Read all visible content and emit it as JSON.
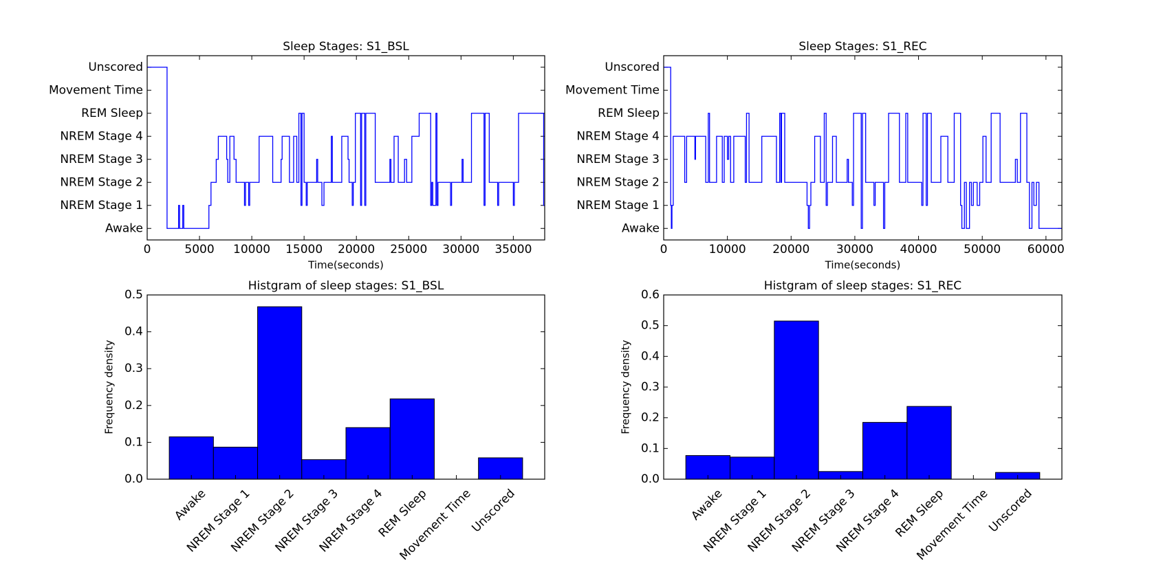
{
  "chart_data": [
    {
      "type": "line",
      "drawstyle": "steps-post",
      "title": "Sleep Stages: S1_BSL",
      "xlabel": "Time(seconds)",
      "color": "#0000ff",
      "x": [
        0,
        1900,
        3000,
        3100,
        3400,
        3500,
        5900,
        6100,
        6600,
        6800,
        7600,
        7700,
        7900,
        8300,
        8500,
        9300,
        9400,
        9700,
        9800,
        10700,
        12000,
        12800,
        12900,
        13600,
        14000,
        14300,
        14500,
        14700,
        14800,
        15000,
        15200,
        15300,
        16200,
        16300,
        16700,
        16900,
        17600,
        17700,
        18600,
        19200,
        19300,
        19600,
        19700,
        19900,
        20400,
        20500,
        20800,
        20900,
        21800,
        23200,
        23300,
        23600,
        24000,
        24600,
        24800,
        25300,
        26000,
        27100,
        27200,
        27300,
        27600,
        27700,
        27800,
        29000,
        29100,
        30100,
        30200,
        31000,
        32200,
        32300,
        32700,
        33500,
        33600,
        35000,
        35100,
        35500,
        37900,
        38000
      ],
      "values": [
        7,
        0,
        1,
        0,
        1,
        0,
        1,
        2,
        3,
        4,
        3,
        2,
        4,
        3,
        2,
        1,
        2,
        1,
        2,
        4,
        2,
        3,
        4,
        2,
        4,
        2,
        5,
        1,
        5,
        2,
        1,
        2,
        3,
        2,
        1,
        2,
        4,
        2,
        4,
        3,
        2,
        1,
        2,
        5,
        1,
        5,
        1,
        5,
        2,
        3,
        2,
        4,
        2,
        3,
        2,
        4,
        5,
        1,
        2,
        1,
        5,
        1,
        2,
        1,
        2,
        3,
        2,
        5,
        1,
        5,
        2,
        1,
        2,
        1,
        2,
        5,
        1,
        1
      ],
      "xlim": [
        0,
        38000
      ],
      "xticks": [
        0,
        5000,
        10000,
        15000,
        20000,
        25000,
        30000,
        35000
      ],
      "ylim": [
        -0.5,
        7.5
      ],
      "yticks": [
        {
          "value": 0,
          "label": "Awake"
        },
        {
          "value": 1,
          "label": "NREM Stage 1"
        },
        {
          "value": 2,
          "label": "NREM Stage 2"
        },
        {
          "value": 3,
          "label": "NREM Stage 3"
        },
        {
          "value": 4,
          "label": "NREM Stage 4"
        },
        {
          "value": 5,
          "label": "REM Sleep"
        },
        {
          "value": 6,
          "label": "Movement Time"
        },
        {
          "value": 7,
          "label": "Unscored"
        }
      ]
    },
    {
      "type": "line",
      "drawstyle": "steps-post",
      "title": "Sleep Stages: S1_REC",
      "xlabel": "Time(seconds)",
      "color": "#0000ff",
      "x": [
        0,
        1100,
        1200,
        1300,
        1500,
        3300,
        3600,
        4900,
        5000,
        6600,
        7000,
        7200,
        8300,
        9200,
        9500,
        10000,
        10200,
        10500,
        11000,
        12800,
        13000,
        13400,
        15400,
        17700,
        18200,
        18400,
        18500,
        19000,
        22500,
        22700,
        22900,
        23100,
        23700,
        24600,
        25200,
        25500,
        25700,
        26500,
        27100,
        28800,
        29000,
        29600,
        29800,
        31000,
        31200,
        31700,
        33000,
        33200,
        34500,
        34700,
        35300,
        37000,
        38000,
        38300,
        40500,
        40700,
        41200,
        41400,
        42000,
        43500,
        44600,
        45600,
        46600,
        46800,
        47200,
        47500,
        48000,
        48300,
        48600,
        49200,
        49600,
        50100,
        50600,
        51400,
        52800,
        55200,
        55500,
        56000,
        57000,
        57400,
        57800,
        58100,
        58500,
        58900,
        62500
      ],
      "values": [
        7,
        1,
        0,
        1,
        4,
        2,
        4,
        3,
        4,
        2,
        5,
        2,
        4,
        2,
        4,
        3,
        4,
        2,
        4,
        2,
        5,
        2,
        4,
        2,
        5,
        2,
        5,
        2,
        1,
        0,
        1,
        2,
        4,
        2,
        5,
        1,
        2,
        4,
        2,
        3,
        2,
        1,
        5,
        0,
        5,
        2,
        1,
        2,
        0,
        2,
        5,
        2,
        5,
        2,
        1,
        5,
        1,
        5,
        2,
        4,
        2,
        5,
        1,
        0,
        2,
        0,
        2,
        1,
        2,
        1,
        2,
        4,
        2,
        5,
        2,
        3,
        2,
        5,
        2,
        0,
        2,
        1,
        2,
        0,
        0
      ],
      "xlim": [
        0,
        62500
      ],
      "xticks": [
        0,
        10000,
        20000,
        30000,
        40000,
        50000,
        60000
      ],
      "ylim": [
        -0.5,
        7.5
      ],
      "yticks": [
        {
          "value": 0,
          "label": "Awake"
        },
        {
          "value": 1,
          "label": "NREM Stage 1"
        },
        {
          "value": 2,
          "label": "NREM Stage 2"
        },
        {
          "value": 3,
          "label": "NREM Stage 3"
        },
        {
          "value": 4,
          "label": "NREM Stage 4"
        },
        {
          "value": 5,
          "label": "REM Sleep"
        },
        {
          "value": 6,
          "label": "Movement Time"
        },
        {
          "value": 7,
          "label": "Unscored"
        }
      ]
    },
    {
      "type": "bar",
      "title": "Histgram of sleep stages: S1_BSL",
      "ylabel": "Frequency density",
      "color": "#0000ff",
      "categories": [
        "Awake",
        "NREM Stage 1",
        "NREM Stage 2",
        "NREM Stage 3",
        "NREM Stage 4",
        "REM Sleep",
        "Movement Time",
        "Unscored"
      ],
      "values": [
        0.115,
        0.087,
        0.468,
        0.053,
        0.14,
        0.218,
        0,
        0.058
      ],
      "ylim": [
        0,
        0.5
      ],
      "yticks": [
        {
          "value": 0,
          "label": "0.0"
        },
        0.1,
        0.2,
        0.3,
        0.4,
        0.5
      ]
    },
    {
      "type": "bar",
      "title": "Histgram of sleep stages: S1_REC",
      "ylabel": "Frequency density",
      "color": "#0000ff",
      "categories": [
        "Awake",
        "NREM Stage 1",
        "NREM Stage 2",
        "NREM Stage 3",
        "NREM Stage 4",
        "REM Sleep",
        "Movement Time",
        "Unscored"
      ],
      "values": [
        0.077,
        0.072,
        0.515,
        0.025,
        0.185,
        0.237,
        0,
        0.022
      ],
      "ylim": [
        0,
        0.6
      ],
      "yticks": [
        {
          "value": 0,
          "label": "0.0"
        },
        0.1,
        0.2,
        0.3,
        0.4,
        0.5,
        0.6
      ]
    }
  ]
}
